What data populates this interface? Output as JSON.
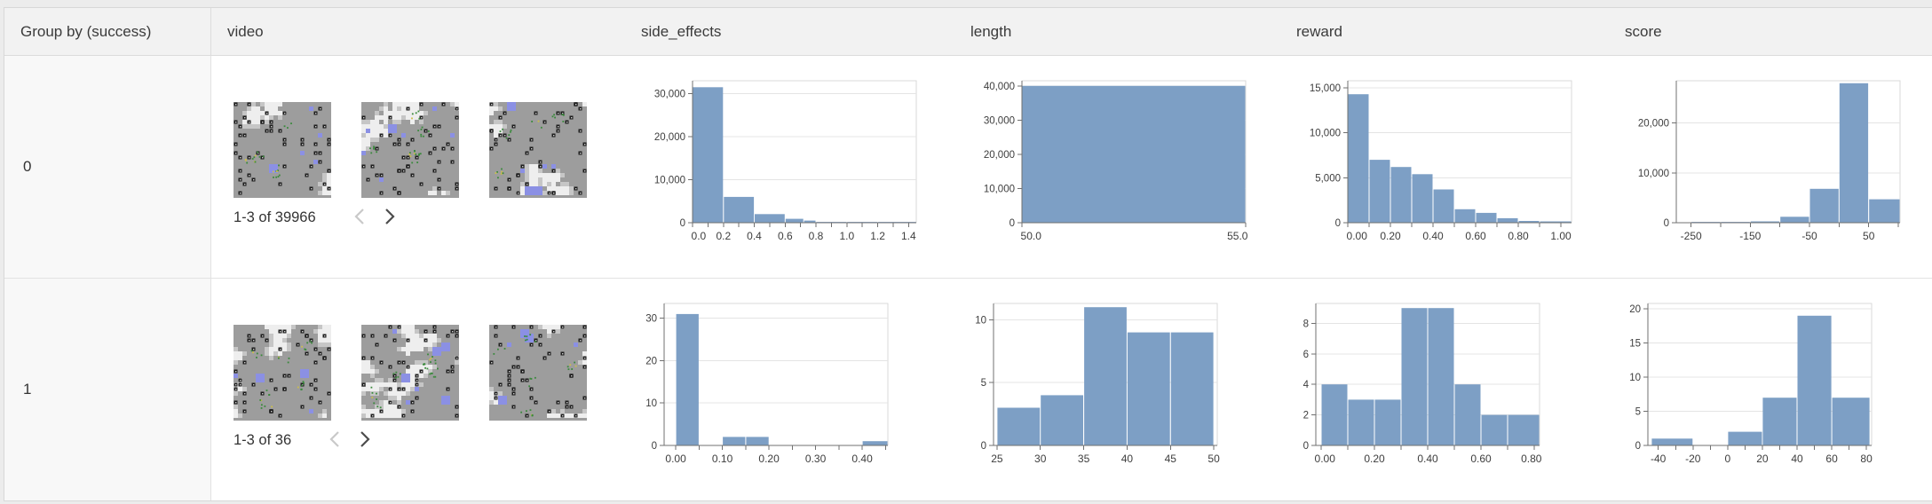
{
  "colors": {
    "bar_fill": "#7d9fc5",
    "axis_line": "#707070",
    "grid_line": "#e4e4e4",
    "plot_border": "#d9d9d9",
    "tick_label": "#3d3d3d",
    "chevron_disabled": "#c9c9c9",
    "chevron_enabled": "#4c4c4c"
  },
  "table": {
    "columns": [
      "Group by (success)",
      "video",
      "side_effects",
      "length",
      "reward",
      "score"
    ],
    "rows": [
      {
        "group": "0",
        "video": {
          "pagination": "1-3 of 39966",
          "prev_enabled": false,
          "next_enabled": true,
          "thumb_seeds": [
            11,
            23,
            37
          ]
        },
        "charts": {
          "side_effects": {
            "type": "histogram",
            "xlim": [
              0,
              1.45
            ],
            "ylim": [
              0,
              33000
            ],
            "bars": [
              {
                "x0": 0.0,
                "x1": 0.2,
                "y": 31500
              },
              {
                "x0": 0.2,
                "x1": 0.4,
                "y": 6000
              },
              {
                "x0": 0.4,
                "x1": 0.6,
                "y": 2000
              },
              {
                "x0": 0.6,
                "x1": 0.72,
                "y": 900
              },
              {
                "x0": 0.72,
                "x1": 0.8,
                "y": 500
              },
              {
                "x0": 0.8,
                "x1": 1.0,
                "y": 150
              },
              {
                "x0": 1.0,
                "x1": 1.2,
                "y": 80
              },
              {
                "x0": 1.2,
                "x1": 1.45,
                "y": 60
              }
            ],
            "x_ticks": [
              {
                "v": 0.0,
                "label": "0.0"
              },
              {
                "v": 0.1
              },
              {
                "v": 0.2,
                "label": "0.2"
              },
              {
                "v": 0.3
              },
              {
                "v": 0.4,
                "label": "0.4"
              },
              {
                "v": 0.5
              },
              {
                "v": 0.6,
                "label": "0.6"
              },
              {
                "v": 0.7
              },
              {
                "v": 0.8,
                "label": "0.8"
              },
              {
                "v": 0.9
              },
              {
                "v": 1.0,
                "label": "1.0"
              },
              {
                "v": 1.1
              },
              {
                "v": 1.2,
                "label": "1.2"
              },
              {
                "v": 1.3
              },
              {
                "v": 1.4,
                "label": "1.4"
              }
            ],
            "y_ticks": [
              {
                "v": 0,
                "label": "0"
              },
              {
                "v": 10000,
                "label": "10,000"
              },
              {
                "v": 20000,
                "label": "20,000"
              },
              {
                "v": 30000,
                "label": "30,000"
              }
            ],
            "ml": 64
          },
          "length": {
            "type": "histogram",
            "xlim": [
              50,
              55
            ],
            "ylim": [
              0,
              41500
            ],
            "bars": [
              {
                "x0": 50,
                "x1": 55,
                "y": 40000
              }
            ],
            "x_ticks": [
              {
                "v": 50,
                "label": "50.0"
              },
              {
                "v": 55,
                "label": "55.0"
              }
            ],
            "y_ticks": [
              {
                "v": 0,
                "label": "0"
              },
              {
                "v": 10000,
                "label": "10,000"
              },
              {
                "v": 20000,
                "label": "20,000"
              },
              {
                "v": 30000,
                "label": "30,000"
              },
              {
                "v": 40000,
                "label": "40,000"
              }
            ],
            "ml": 64
          },
          "reward": {
            "type": "histogram",
            "xlim": [
              0,
              1.05
            ],
            "ylim": [
              0,
              15800
            ],
            "bars": [
              {
                "x0": 0.0,
                "x1": 0.1,
                "y": 14300
              },
              {
                "x0": 0.1,
                "x1": 0.2,
                "y": 7000
              },
              {
                "x0": 0.2,
                "x1": 0.3,
                "y": 6200
              },
              {
                "x0": 0.3,
                "x1": 0.4,
                "y": 5400
              },
              {
                "x0": 0.4,
                "x1": 0.5,
                "y": 3700
              },
              {
                "x0": 0.5,
                "x1": 0.6,
                "y": 1500
              },
              {
                "x0": 0.6,
                "x1": 0.7,
                "y": 1100
              },
              {
                "x0": 0.7,
                "x1": 0.8,
                "y": 500
              },
              {
                "x0": 0.8,
                "x1": 0.9,
                "y": 200
              },
              {
                "x0": 0.9,
                "x1": 1.05,
                "y": 150
              }
            ],
            "x_ticks": [
              {
                "v": 0.0,
                "label": "0.00"
              },
              {
                "v": 0.1
              },
              {
                "v": 0.2,
                "label": "0.20"
              },
              {
                "v": 0.3
              },
              {
                "v": 0.4,
                "label": "0.40"
              },
              {
                "v": 0.5
              },
              {
                "v": 0.6,
                "label": "0.60"
              },
              {
                "v": 0.7
              },
              {
                "v": 0.8,
                "label": "0.80"
              },
              {
                "v": 0.9
              },
              {
                "v": 1.0,
                "label": "1.00"
              }
            ],
            "y_ticks": [
              {
                "v": 0,
                "label": "0"
              },
              {
                "v": 5000,
                "label": "5,000"
              },
              {
                "v": 10000,
                "label": "10,000"
              },
              {
                "v": 15000,
                "label": "15,000"
              }
            ],
            "ml": 64
          },
          "score": {
            "type": "histogram",
            "xlim": [
              -275,
              103
            ],
            "ylim": [
              0,
              28500
            ],
            "bars": [
              {
                "x0": -250,
                "x1": -200,
                "y": 80
              },
              {
                "x0": -200,
                "x1": -150,
                "y": 130
              },
              {
                "x0": -150,
                "x1": -100,
                "y": 260
              },
              {
                "x0": -100,
                "x1": -50,
                "y": 1200
              },
              {
                "x0": -50,
                "x1": 0,
                "y": 6800
              },
              {
                "x0": 0,
                "x1": 50,
                "y": 28000
              },
              {
                "x0": 50,
                "x1": 103,
                "y": 4700
              }
            ],
            "x_ticks": [
              {
                "v": -250,
                "label": "-250"
              },
              {
                "v": -200
              },
              {
                "v": -150,
                "label": "-150"
              },
              {
                "v": -100
              },
              {
                "v": -50,
                "label": "-50"
              },
              {
                "v": 0
              },
              {
                "v": 50,
                "label": "50"
              },
              {
                "v": 100
              }
            ],
            "y_ticks": [
              {
                "v": 0,
                "label": "0"
              },
              {
                "v": 10000,
                "label": "10,000"
              },
              {
                "v": 20000,
                "label": "20,000"
              }
            ],
            "ml": 64
          }
        }
      },
      {
        "group": "1",
        "video": {
          "pagination": "1-3 of 36",
          "prev_enabled": false,
          "next_enabled": true,
          "thumb_seeds": [
            51,
            67,
            83
          ]
        },
        "charts": {
          "side_effects": {
            "type": "histogram",
            "xlim": [
              -0.025,
              0.455
            ],
            "ylim": [
              0,
              33.5
            ],
            "bars": [
              {
                "x0": 0.0,
                "x1": 0.05,
                "y": 31
              },
              {
                "x0": 0.1,
                "x1": 0.15,
                "y": 2
              },
              {
                "x0": 0.15,
                "x1": 0.2,
                "y": 2
              },
              {
                "x0": 0.4,
                "x1": 0.455,
                "y": 1
              }
            ],
            "x_ticks": [
              {
                "v": 0.0,
                "label": "0.00"
              },
              {
                "v": 0.05
              },
              {
                "v": 0.1,
                "label": "0.10"
              },
              {
                "v": 0.15
              },
              {
                "v": 0.2,
                "label": "0.20"
              },
              {
                "v": 0.25
              },
              {
                "v": 0.3,
                "label": "0.30"
              },
              {
                "v": 0.35
              },
              {
                "v": 0.4,
                "label": "0.40"
              },
              {
                "v": 0.45
              }
            ],
            "y_ticks": [
              {
                "v": 0,
                "label": "0"
              },
              {
                "v": 10,
                "label": "10"
              },
              {
                "v": 20,
                "label": "20"
              },
              {
                "v": 30,
                "label": "30"
              }
            ],
            "ml": 32
          },
          "length": {
            "type": "histogram",
            "xlim": [
              24.6,
              50.4
            ],
            "ylim": [
              0,
              11.3
            ],
            "bars": [
              {
                "x0": 25,
                "x1": 30,
                "y": 3
              },
              {
                "x0": 30,
                "x1": 35,
                "y": 4
              },
              {
                "x0": 35,
                "x1": 40,
                "y": 11
              },
              {
                "x0": 40,
                "x1": 45,
                "y": 9
              },
              {
                "x0": 45,
                "x1": 50,
                "y": 9
              }
            ],
            "x_ticks": [
              {
                "v": 25,
                "label": "25"
              },
              {
                "v": 30,
                "label": "30"
              },
              {
                "v": 35,
                "label": "35"
              },
              {
                "v": 40,
                "label": "40"
              },
              {
                "v": 45,
                "label": "45"
              },
              {
                "v": 50,
                "label": "50"
              }
            ],
            "y_ticks": [
              {
                "v": 0,
                "label": "0"
              },
              {
                "v": 5,
                "label": "5"
              },
              {
                "v": 10,
                "label": "10"
              }
            ],
            "ml": 32
          },
          "reward": {
            "type": "histogram",
            "xlim": [
              -0.02,
              0.82
            ],
            "ylim": [
              0,
              9.3
            ],
            "bars": [
              {
                "x0": 0.0,
                "x1": 0.1,
                "y": 4
              },
              {
                "x0": 0.1,
                "x1": 0.2,
                "y": 3
              },
              {
                "x0": 0.2,
                "x1": 0.3,
                "y": 3
              },
              {
                "x0": 0.3,
                "x1": 0.4,
                "y": 9
              },
              {
                "x0": 0.4,
                "x1": 0.5,
                "y": 9
              },
              {
                "x0": 0.5,
                "x1": 0.6,
                "y": 4
              },
              {
                "x0": 0.6,
                "x1": 0.7,
                "y": 2
              },
              {
                "x0": 0.7,
                "x1": 0.82,
                "y": 2
              }
            ],
            "x_ticks": [
              {
                "v": 0.0,
                "label": "0.00"
              },
              {
                "v": 0.1
              },
              {
                "v": 0.2,
                "label": "0.20"
              },
              {
                "v": 0.3
              },
              {
                "v": 0.4,
                "label": "0.40"
              },
              {
                "v": 0.5
              },
              {
                "v": 0.6,
                "label": "0.60"
              },
              {
                "v": 0.7
              },
              {
                "v": 0.8,
                "label": "0.80"
              }
            ],
            "y_ticks": [
              {
                "v": 0,
                "label": "0"
              },
              {
                "v": 2,
                "label": "2"
              },
              {
                "v": 4,
                "label": "4"
              },
              {
                "v": 6,
                "label": "6"
              },
              {
                "v": 8,
                "label": "8"
              }
            ],
            "ml": 28
          },
          "score": {
            "type": "histogram",
            "xlim": [
              -46,
              83
            ],
            "ylim": [
              0,
              20.8
            ],
            "bars": [
              {
                "x0": -44,
                "x1": -20,
                "y": 1
              },
              {
                "x0": 0,
                "x1": 20,
                "y": 2
              },
              {
                "x0": 20,
                "x1": 40,
                "y": 7
              },
              {
                "x0": 40,
                "x1": 60,
                "y": 19
              },
              {
                "x0": 60,
                "x1": 82,
                "y": 7
              }
            ],
            "x_ticks": [
              {
                "v": -40,
                "label": "-40"
              },
              {
                "v": -30
              },
              {
                "v": -20,
                "label": "-20"
              },
              {
                "v": -10
              },
              {
                "v": 0,
                "label": "0"
              },
              {
                "v": 10
              },
              {
                "v": 20,
                "label": "20"
              },
              {
                "v": 30
              },
              {
                "v": 40,
                "label": "40"
              },
              {
                "v": 50
              },
              {
                "v": 60,
                "label": "60"
              },
              {
                "v": 70
              },
              {
                "v": 80,
                "label": "80"
              }
            ],
            "y_ticks": [
              {
                "v": 0,
                "label": "0"
              },
              {
                "v": 5,
                "label": "5"
              },
              {
                "v": 10,
                "label": "10"
              },
              {
                "v": 15,
                "label": "15"
              },
              {
                "v": 20,
                "label": "20"
              }
            ],
            "ml": 32
          }
        }
      }
    ]
  }
}
